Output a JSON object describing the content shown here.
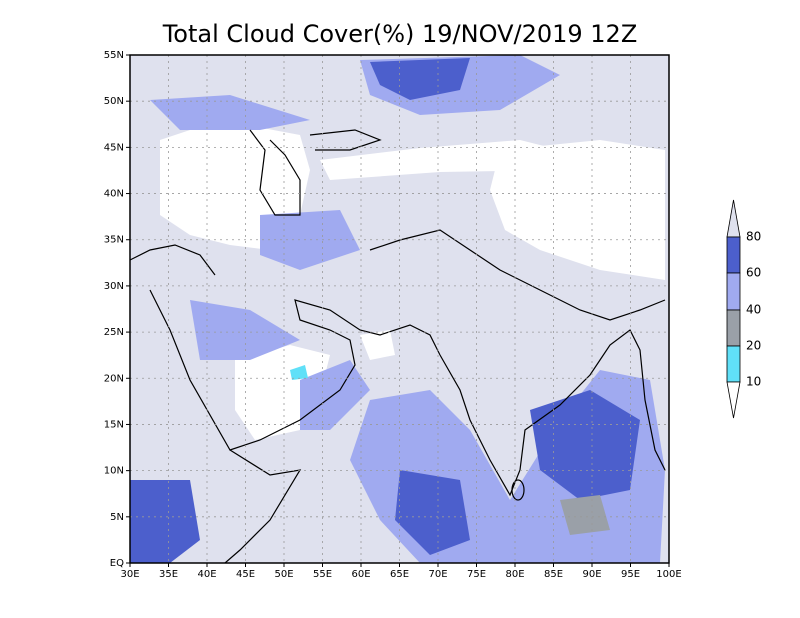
{
  "map": {
    "title": "Total Cloud Cover(%) 19/NOV/2019 12Z",
    "lon_labels": [
      "30E",
      "35E",
      "40E",
      "45E",
      "50E",
      "55E",
      "60E",
      "65E",
      "70E",
      "75E",
      "80E",
      "85E",
      "90E",
      "95E",
      "100E"
    ],
    "lat_labels": [
      "EQ",
      "5N",
      "10N",
      "15N",
      "20N",
      "25N",
      "30N",
      "35N",
      "40N",
      "45N",
      "50N",
      "55N"
    ],
    "legend": {
      "levels": [
        80,
        60,
        40,
        20,
        10
      ]
    }
  }
}
